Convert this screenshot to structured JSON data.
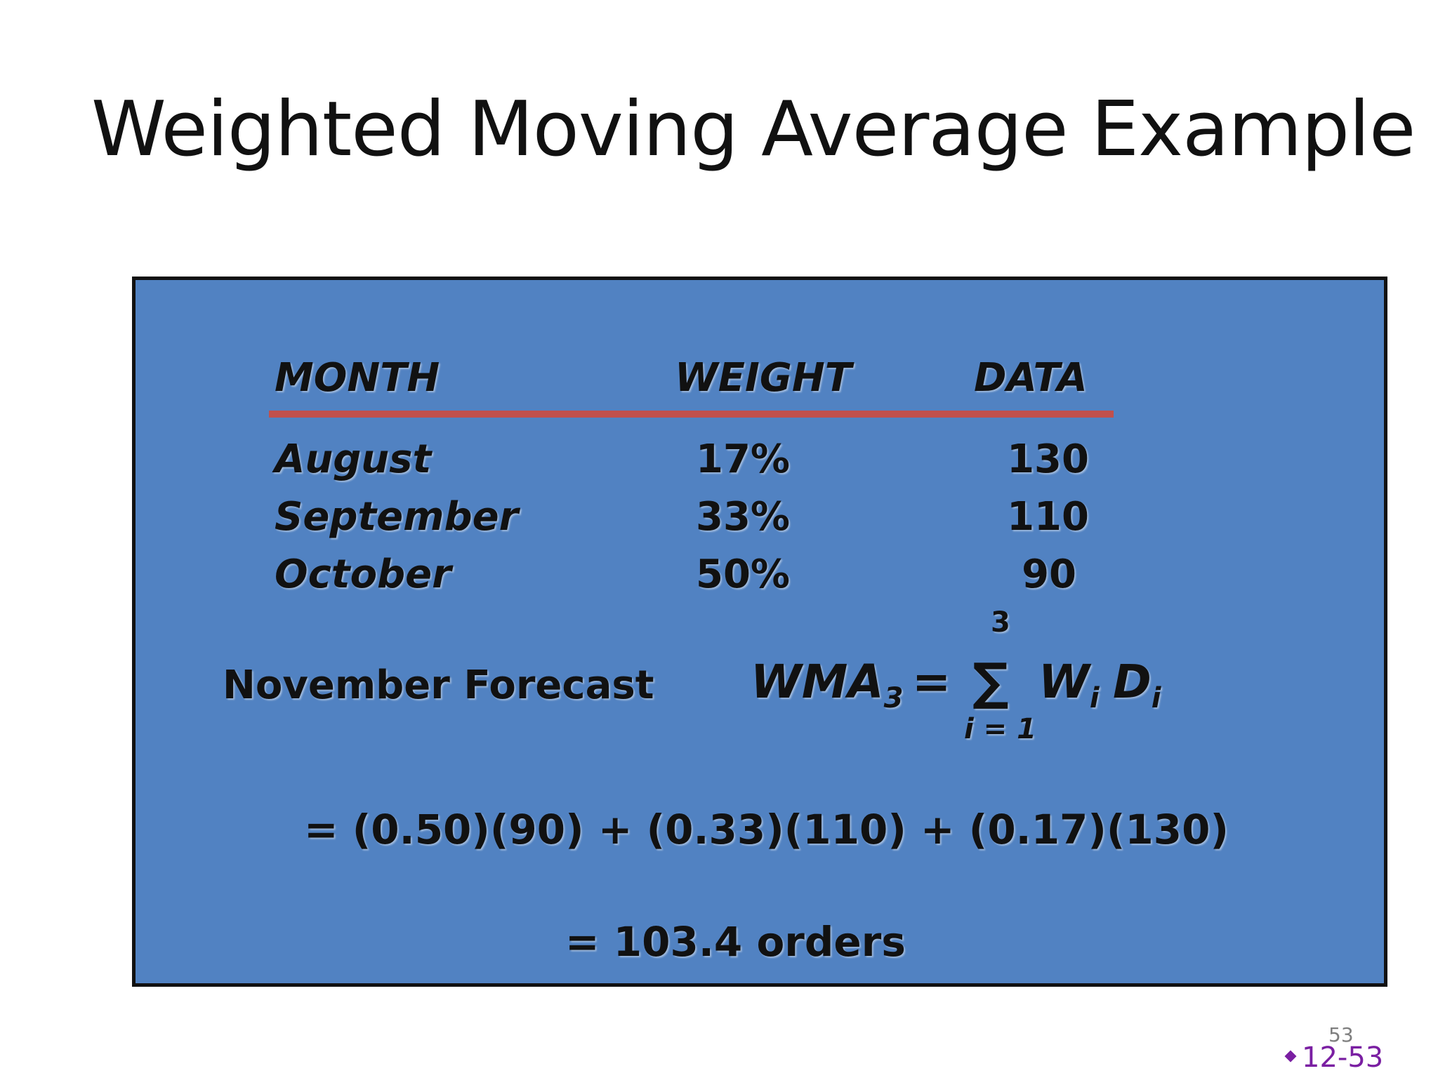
{
  "slide": {
    "title": "Weighted Moving Average Example",
    "table": {
      "headers": {
        "month": "MONTH",
        "weight": "WEIGHT",
        "data": "DATA"
      },
      "rows": [
        {
          "month": "August",
          "weight": "17%",
          "data": "130"
        },
        {
          "month": "September",
          "weight": "33%",
          "data": "110"
        },
        {
          "month": "October",
          "weight": "50%",
          "data": "90"
        }
      ]
    },
    "forecast": {
      "label": "November Forecast",
      "wma": "WMA",
      "wma_sub": "3",
      "equals": "=",
      "sigma": "∑",
      "sum_upper": "3",
      "sum_lower": "i = 1",
      "w": "W",
      "w_sub": "i",
      "d": "D",
      "d_sub": "i",
      "calculation": "= (0.50)(90) + (0.33)(110) + (0.17)(130)",
      "result": "= 103.4 orders"
    },
    "page_number": "53",
    "slide_code": "12-53"
  },
  "colors": {
    "box_background": "#5182c2",
    "rule": "#c0504d",
    "slide_code": "#7a1fa2"
  }
}
